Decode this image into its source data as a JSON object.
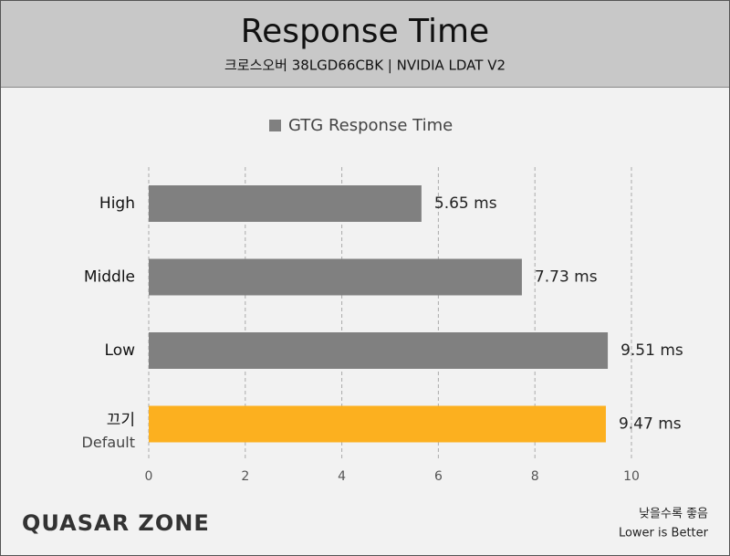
{
  "chart_data": {
    "type": "bar",
    "orientation": "horizontal",
    "title": "Response Time",
    "subtitle": "크로스오버 38LGD66CBK  |  NVIDIA LDAT V2",
    "categories": [
      "High",
      "Middle",
      "Low",
      "끄기"
    ],
    "category_sublabels": [
      null,
      null,
      null,
      "Default"
    ],
    "series": [
      {
        "name": "GTG Response Time",
        "color": "#808080",
        "values": [
          5.65,
          7.73,
          9.51,
          9.47
        ],
        "value_labels": [
          "5.65 ms",
          "7.73 ms",
          "9.51 ms",
          "9.47 ms"
        ],
        "colors": [
          "#808080",
          "#808080",
          "#808080",
          "#fcb01f"
        ]
      }
    ],
    "xlim": [
      0,
      10
    ],
    "xticks": [
      0,
      2,
      4,
      6,
      8,
      10
    ],
    "grid": true,
    "legend": "top",
    "watermark": "QUASAR ZONE",
    "annotations": [
      "낮을수록 좋음",
      "Lower is Better"
    ]
  }
}
